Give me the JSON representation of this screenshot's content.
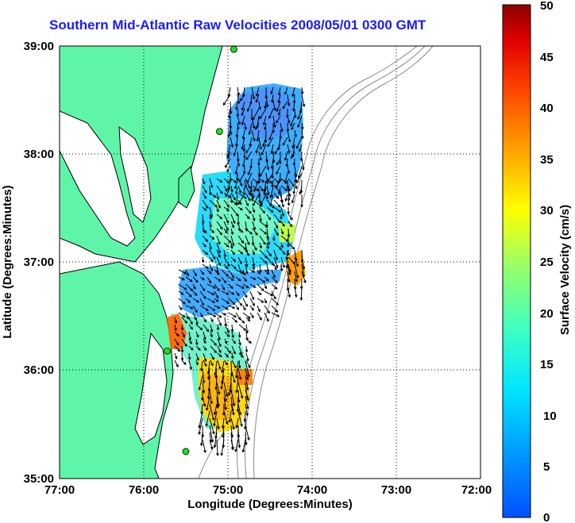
{
  "title": "Southern Mid-Atlantic Raw Velocities 2008/05/01 0300 GMT",
  "x_axis": {
    "label": "Longitude (Degrees:Minutes)",
    "ticks": [
      "77:00",
      "76:00",
      "75:00",
      "74:00",
      "73:00",
      "72:00"
    ]
  },
  "y_axis": {
    "label": "Latitude (Degrees:Minutes)",
    "ticks": [
      "39:00",
      "38:00",
      "37:00",
      "36:00",
      "35:00"
    ]
  },
  "colorbar": {
    "label": "Surface Velocity (cm/s)",
    "ticks": [
      "50",
      "45",
      "40",
      "35",
      "30",
      "25",
      "20",
      "15",
      "10",
      "5",
      "0"
    ],
    "colormap": "jet",
    "range": [
      0,
      50
    ]
  },
  "colors": {
    "title": "#1a1aff",
    "land": "#5ff5a8",
    "coastline": "#000000",
    "bathymetry": "#888888",
    "grid": "#000000",
    "station": "#22dd22"
  },
  "map": {
    "lon_range": [
      -77,
      -72
    ],
    "lat_range": [
      35,
      39
    ],
    "grid": "dotted",
    "stations": [
      {
        "lon": -74.93,
        "lat": 38.97
      },
      {
        "lon": -75.1,
        "lat": 38.21
      },
      {
        "lon": -75.72,
        "lat": 36.18
      },
      {
        "lon": -75.5,
        "lat": 35.25
      }
    ]
  }
}
